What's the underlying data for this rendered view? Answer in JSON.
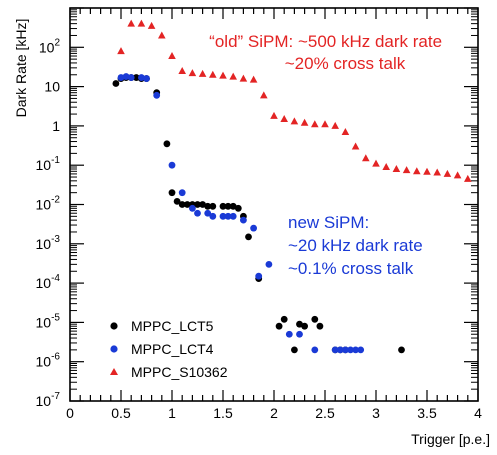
{
  "chart_data": {
    "type": "scatter",
    "xlabel": "Trigger [p.e.]",
    "ylabel": "Dark Rate [kHz]",
    "xlim": [
      0,
      4
    ],
    "ylim": [
      1e-07,
      1000
    ],
    "y_scale": "log",
    "x_ticks": [
      "0",
      "0.5",
      "1",
      "1.5",
      "2",
      "2.5",
      "3",
      "3.5",
      "4"
    ],
    "y_ticks": [
      {
        "base": "10",
        "exp": "-7"
      },
      {
        "base": "10",
        "exp": "-6"
      },
      {
        "base": "10",
        "exp": "-5"
      },
      {
        "base": "10",
        "exp": "-4"
      },
      {
        "base": "10",
        "exp": "-3"
      },
      {
        "base": "10",
        "exp": "-2"
      },
      {
        "base": "10",
        "exp": "-1"
      },
      {
        "base": "1",
        "exp": ""
      },
      {
        "base": "10",
        "exp": ""
      },
      {
        "base": "10",
        "exp": "2"
      }
    ],
    "grid": false,
    "legend_position": "bottom-left",
    "series": [
      {
        "name": "MPPC_LCT5",
        "color": "#000000",
        "marker": "circle",
        "points": [
          [
            0.45,
            12
          ],
          [
            0.5,
            16
          ],
          [
            0.55,
            17
          ],
          [
            0.6,
            17
          ],
          [
            0.65,
            17
          ],
          [
            0.7,
            16
          ],
          [
            0.75,
            16
          ],
          [
            0.85,
            7
          ],
          [
            0.95,
            0.35
          ],
          [
            1.0,
            0.02
          ],
          [
            1.05,
            0.012
          ],
          [
            1.1,
            0.01
          ],
          [
            1.15,
            0.01
          ],
          [
            1.2,
            0.01
          ],
          [
            1.25,
            0.01
          ],
          [
            1.3,
            0.01
          ],
          [
            1.35,
            0.009
          ],
          [
            1.4,
            0.009
          ],
          [
            1.5,
            0.009
          ],
          [
            1.55,
            0.009
          ],
          [
            1.6,
            0.009
          ],
          [
            1.65,
            0.008
          ],
          [
            1.7,
            0.005
          ],
          [
            1.75,
            0.0015
          ],
          [
            1.85,
            0.00013
          ],
          [
            2.05,
            8e-06
          ],
          [
            2.1,
            1.2e-05
          ],
          [
            2.2,
            2e-06
          ],
          [
            2.25,
            9e-06
          ],
          [
            2.3,
            8e-06
          ],
          [
            2.4,
            1.2e-05
          ],
          [
            2.45,
            8e-06
          ],
          [
            2.6,
            2e-06
          ],
          [
            2.65,
            2e-06
          ],
          [
            2.7,
            2e-06
          ],
          [
            3.25,
            2e-06
          ]
        ]
      },
      {
        "name": "MPPC_LCT4",
        "color": "#1a3ad6",
        "marker": "circle",
        "points": [
          [
            0.5,
            17
          ],
          [
            0.55,
            18
          ],
          [
            0.6,
            17
          ],
          [
            0.7,
            17
          ],
          [
            0.75,
            16
          ],
          [
            0.85,
            6
          ],
          [
            1.0,
            0.1
          ],
          [
            1.1,
            0.02
          ],
          [
            1.2,
            0.008
          ],
          [
            1.25,
            0.006
          ],
          [
            1.35,
            0.006
          ],
          [
            1.4,
            0.005
          ],
          [
            1.5,
            0.005
          ],
          [
            1.55,
            0.005
          ],
          [
            1.6,
            0.005
          ],
          [
            1.7,
            0.004
          ],
          [
            1.8,
            0.0025
          ],
          [
            1.85,
            0.00015
          ],
          [
            1.95,
            0.0003
          ],
          [
            2.15,
            5e-06
          ],
          [
            2.25,
            5e-06
          ],
          [
            2.4,
            2e-06
          ],
          [
            2.6,
            2e-06
          ],
          [
            2.65,
            2e-06
          ],
          [
            2.7,
            2e-06
          ],
          [
            2.75,
            2e-06
          ],
          [
            2.8,
            2e-06
          ],
          [
            2.85,
            2e-06
          ]
        ]
      },
      {
        "name": "MPPC_S10362",
        "color": "#e32424",
        "marker": "triangle",
        "points": [
          [
            0.5,
            80
          ],
          [
            0.6,
            400
          ],
          [
            0.7,
            400
          ],
          [
            0.8,
            350
          ],
          [
            0.9,
            200
          ],
          [
            1.0,
            60
          ],
          [
            1.1,
            25
          ],
          [
            1.2,
            22
          ],
          [
            1.3,
            21
          ],
          [
            1.4,
            20
          ],
          [
            1.5,
            19
          ],
          [
            1.6,
            18
          ],
          [
            1.7,
            16
          ],
          [
            1.8,
            15
          ],
          [
            1.9,
            6
          ],
          [
            2.0,
            1.8
          ],
          [
            2.1,
            1.5
          ],
          [
            2.2,
            1.3
          ],
          [
            2.3,
            1.2
          ],
          [
            2.4,
            1.1
          ],
          [
            2.5,
            1.1
          ],
          [
            2.6,
            1.0
          ],
          [
            2.7,
            0.7
          ],
          [
            2.8,
            0.3
          ],
          [
            2.9,
            0.15
          ],
          [
            3.0,
            0.11
          ],
          [
            3.1,
            0.09
          ],
          [
            3.2,
            0.08
          ],
          [
            3.3,
            0.075
          ],
          [
            3.4,
            0.07
          ],
          [
            3.5,
            0.068
          ],
          [
            3.6,
            0.065
          ],
          [
            3.7,
            0.06
          ],
          [
            3.8,
            0.055
          ],
          [
            3.9,
            0.045
          ]
        ]
      }
    ],
    "annotations": [
      {
        "lines": [
          "“old” SiPM: ~500 kHz dark rate",
          "~20% cross talk"
        ],
        "color": "#e32424"
      },
      {
        "lines": [
          "new SiPM:",
          "~20 kHz dark rate",
          "~0.1% cross talk"
        ],
        "color": "#1a3ad6"
      }
    ]
  }
}
